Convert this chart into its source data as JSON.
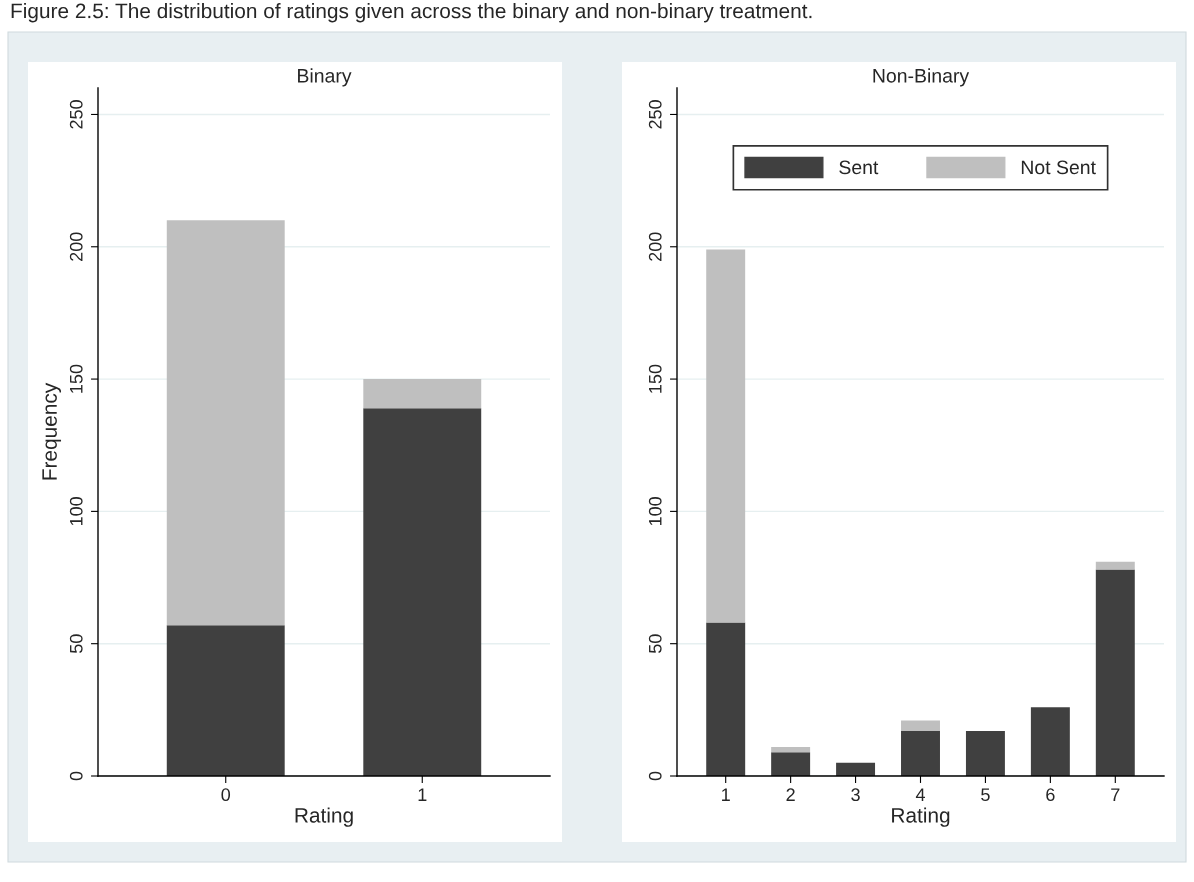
{
  "chart_data": [
    {
      "type": "bar",
      "title": "Binary",
      "xlabel": "Rating",
      "ylabel": "Frequency",
      "categories": [
        "0",
        "1"
      ],
      "stacked": true,
      "series": [
        {
          "color": "#404040",
          "values": [
            57,
            139
          ]
        },
        {
          "color": "#bfbfbf",
          "values": [
            153,
            11
          ]
        }
      ],
      "ylim": [
        0,
        260
      ],
      "yticks": [
        0,
        50,
        100,
        150,
        200,
        250
      ],
      "grid": "y",
      "legend": false,
      "annotations": [
        "Figure 2.5: The distribution of ratings given across the binary and non-binary treatment."
      ]
    },
    {
      "type": "bar",
      "title": "Non-Binary",
      "xlabel": "Rating",
      "categories": [
        "1",
        "2",
        "3",
        "4",
        "5",
        "6",
        "7"
      ],
      "stacked": true,
      "series": [
        {
          "name": "Sent",
          "color": "#404040",
          "values": [
            58,
            9,
            5,
            17,
            17,
            26,
            78
          ]
        },
        {
          "name": "Not Sent",
          "color": "#bfbfbf",
          "values": [
            141,
            2,
            0,
            4,
            0,
            0,
            3
          ]
        }
      ],
      "ylim": [
        0,
        260
      ],
      "yticks": [
        0,
        50,
        100,
        150,
        200,
        250
      ],
      "grid": "y",
      "legend": "top"
    }
  ]
}
